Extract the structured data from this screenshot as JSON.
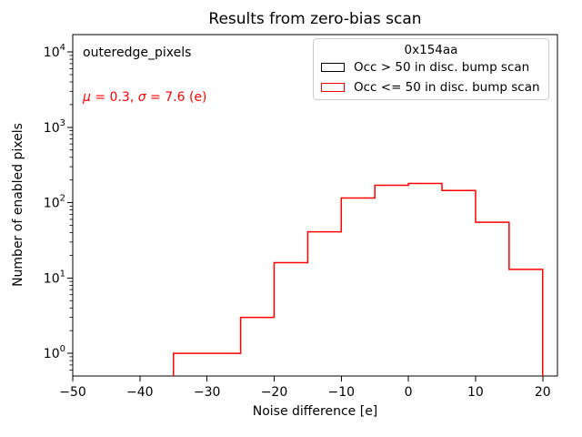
{
  "figure": {
    "background": "#ffffff"
  },
  "title": "Results from zero-bias scan",
  "annotations": {
    "module_label": "outeredge_pixels",
    "stats": {
      "mu_symbol": "μ",
      "mu_text": " = 0.3, ",
      "sigma_symbol": "σ",
      "sigma_text": " = 7.6 (e)"
    },
    "stats_color": "#ff0000"
  },
  "legend": {
    "title": "0x154aa",
    "entries": [
      {
        "label": "Occ > 50 in disc. bump scan",
        "color": "#000000"
      },
      {
        "label": "Occ <= 50 in disc. bump scan",
        "color": "#ff0000"
      }
    ]
  },
  "chart_data": {
    "type": "histogram-step",
    "title": "Results from zero-bias scan",
    "xlabel": "Noise difference [e]",
    "ylabel": "Number of enabled pixels",
    "yscale": "log",
    "grid": false,
    "legend_position": "upper right",
    "legend_title": "0x154aa",
    "xlim": [
      -50,
      22.2
    ],
    "ylim": [
      0.5,
      17000
    ],
    "xticks": [
      -50,
      -40,
      -30,
      -20,
      -10,
      0,
      10,
      20
    ],
    "ytick_exponents": [
      0,
      1,
      2,
      3,
      4
    ],
    "bin_edges": [
      -35,
      -30,
      -25,
      -20,
      -15,
      -10,
      -5,
      0,
      5,
      10,
      15,
      20
    ],
    "series": [
      {
        "name": "Occ > 50 in disc. bump scan",
        "color": "#000000",
        "counts": []
      },
      {
        "name": "Occ <= 50 in disc. bump scan",
        "color": "#ff0000",
        "counts": [
          1,
          1,
          3,
          16,
          41,
          115,
          170,
          180,
          145,
          55,
          13
        ]
      }
    ]
  }
}
